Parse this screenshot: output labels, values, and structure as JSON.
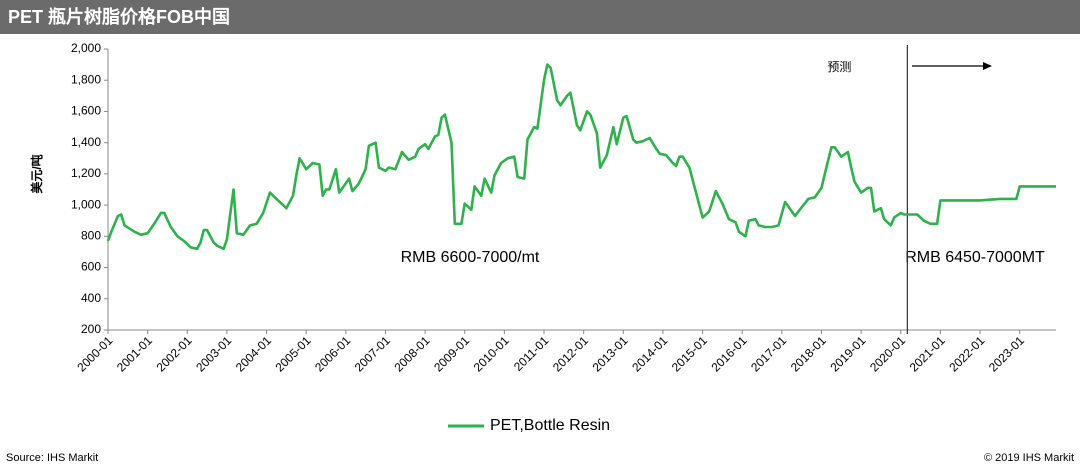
{
  "chart_data": {
    "type": "line",
    "title": "PET 瓶片树脂价格FOB中国",
    "ylabel": "美元/吨",
    "annotations": [
      {
        "text": "预测",
        "x": "2020-03"
      },
      {
        "text": "RMB 6600-7000/mt"
      },
      {
        "text": "RMB 6450-7000MT"
      }
    ],
    "source": "Source: IHS Markit",
    "copyright": "© 2019 IHS Markit",
    "x": [
      "2000-01",
      "2000-02",
      "2000-04",
      "2000-05",
      "2000-06",
      "2000-09",
      "2000-11",
      "2001-01",
      "2001-03",
      "2001-05",
      "2001-06",
      "2001-08",
      "2001-10",
      "2001-12",
      "2002-02",
      "2002-04",
      "2002-05",
      "2002-06",
      "2002-07",
      "2002-09",
      "2002-10",
      "2002-12",
      "2003-01",
      "2003-03",
      "2003-04",
      "2003-06",
      "2003-08",
      "2003-10",
      "2003-12",
      "2004-02",
      "2004-04",
      "2004-06",
      "2004-07",
      "2004-09",
      "2004-10",
      "2004-11",
      "2005-01",
      "2005-03",
      "2005-05",
      "2005-06",
      "2005-07",
      "2005-08",
      "2005-10",
      "2005-11",
      "2006-02",
      "2006-03",
      "2006-05",
      "2006-07",
      "2006-08",
      "2006-10",
      "2006-11",
      "2007-01",
      "2007-02",
      "2007-04",
      "2007-06",
      "2007-08",
      "2007-10",
      "2007-11",
      "2008-01",
      "2008-02",
      "2008-04",
      "2008-05",
      "2008-06",
      "2008-07",
      "2008-09",
      "2008-10",
      "2008-12",
      "2009-01",
      "2009-03",
      "2009-04",
      "2009-06",
      "2009-07",
      "2009-09",
      "2009-10",
      "2009-12",
      "2010-02",
      "2010-04",
      "2010-05",
      "2010-07",
      "2010-08",
      "2010-10",
      "2010-11",
      "2011-01",
      "2011-02",
      "2011-03",
      "2011-05",
      "2011-06",
      "2011-08",
      "2011-09",
      "2011-11",
      "2011-12",
      "2012-02",
      "2012-03",
      "2012-05",
      "2012-06",
      "2012-08",
      "2012-10",
      "2012-11",
      "2013-01",
      "2013-02",
      "2013-04",
      "2013-05",
      "2013-07",
      "2013-09",
      "2013-11",
      "2013-12",
      "2014-02",
      "2014-04",
      "2014-05",
      "2014-06",
      "2014-07",
      "2014-09",
      "2014-10",
      "2014-12",
      "2015-01",
      "2015-03",
      "2015-05",
      "2015-07",
      "2015-09",
      "2015-11",
      "2015-12",
      "2016-02",
      "2016-03",
      "2016-05",
      "2016-06",
      "2016-08",
      "2016-10",
      "2016-12",
      "2017-02",
      "2017-05",
      "2017-06",
      "2017-09",
      "2017-11",
      "2018-01",
      "2018-02",
      "2018-04",
      "2018-05",
      "2018-07",
      "2018-09",
      "2018-10",
      "2018-11",
      "2019-01",
      "2019-03",
      "2019-04",
      "2019-05",
      "2019-07",
      "2019-08",
      "2019-10",
      "2019-11",
      "2020-01",
      "2020-02",
      "2020-04",
      "2020-06",
      "2020-08",
      "2020-10",
      "2020-12",
      "2021-01",
      "2022-01",
      "2022-07",
      "2022-12",
      "2023-01",
      "2023-12"
    ],
    "series": [
      {
        "name": "PET,Bottle Resin",
        "color": "#2eb24b",
        "values": [
          770,
          830,
          930,
          940,
          870,
          830,
          810,
          820,
          880,
          950,
          950,
          860,
          800,
          770,
          730,
          720,
          760,
          840,
          840,
          760,
          740,
          720,
          780,
          1100,
          820,
          810,
          870,
          880,
          950,
          1080,
          1040,
          1000,
          980,
          1060,
          1190,
          1300,
          1230,
          1270,
          1260,
          1060,
          1100,
          1100,
          1230,
          1080,
          1170,
          1090,
          1140,
          1230,
          1380,
          1400,
          1240,
          1220,
          1240,
          1230,
          1340,
          1290,
          1310,
          1360,
          1390,
          1360,
          1440,
          1450,
          1560,
          1580,
          1400,
          880,
          880,
          1010,
          970,
          1120,
          1060,
          1170,
          1080,
          1190,
          1270,
          1300,
          1310,
          1180,
          1170,
          1420,
          1500,
          1490,
          1800,
          1900,
          1880,
          1670,
          1640,
          1700,
          1720,
          1510,
          1480,
          1600,
          1580,
          1460,
          1240,
          1320,
          1500,
          1390,
          1560,
          1570,
          1420,
          1400,
          1410,
          1430,
          1360,
          1330,
          1320,
          1270,
          1250,
          1310,
          1310,
          1240,
          1160,
          1000,
          920,
          960,
          1090,
          1010,
          910,
          890,
          830,
          800,
          900,
          910,
          870,
          860,
          860,
          870,
          1020,
          930,
          960,
          1040,
          1050,
          1110,
          1200,
          1370,
          1370,
          1310,
          1340,
          1240,
          1150,
          1080,
          1110,
          1110,
          960,
          980,
          910,
          870,
          920,
          950,
          940,
          940,
          940,
          900,
          880,
          880,
          1030,
          1030,
          1040,
          1040,
          1120,
          1120
        ]
      }
    ],
    "xlim": [
      "2000-01",
      "2023-12"
    ],
    "xticks": [
      "2000-01",
      "2001-01",
      "2002-01",
      "2003-01",
      "2004-01",
      "2005-01",
      "2006-01",
      "2007-01",
      "2008-01",
      "2009-01",
      "2010-01",
      "2011-01",
      "2012-01",
      "2013-01",
      "2014-01",
      "2015-01",
      "2016-01",
      "2017-01",
      "2018-01",
      "2019-01",
      "2020-01",
      "2021-01",
      "2022-01",
      "2023-01"
    ],
    "ylim": [
      200,
      2000
    ],
    "yticks": [
      200,
      400,
      600,
      800,
      {
        "value": 1000,
        "label": "1,000"
      },
      {
        "value": 1200,
        "label": "1,200"
      },
      {
        "value": 1400,
        "label": "1,400"
      },
      {
        "value": 1600,
        "label": "1,600"
      },
      {
        "value": 1800,
        "label": "1,800"
      },
      {
        "value": 2000,
        "label": "2,000"
      }
    ],
    "grid": false,
    "legend": "bottom"
  }
}
